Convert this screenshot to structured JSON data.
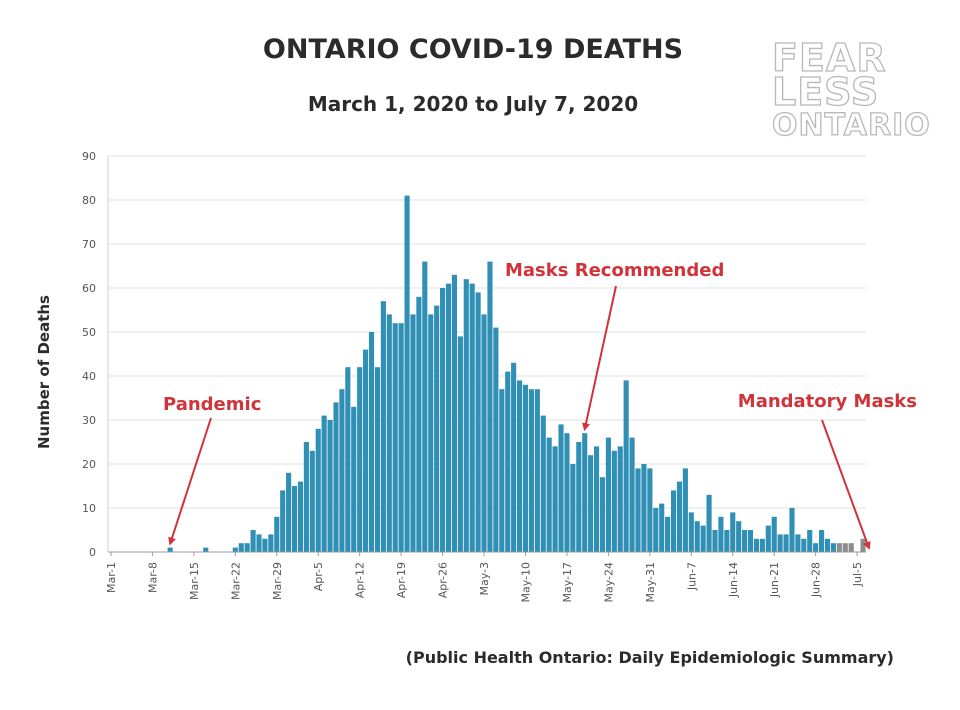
{
  "title": "ONTARIO COVID-19 DEATHS",
  "subtitle": "March 1, 2020 to July 7, 2020",
  "logo": {
    "line1": "FEAR",
    "line2": "LESS",
    "line3": "ONTARIO"
  },
  "source": "(Public Health Ontario: Daily Epidemiologic Summary)",
  "colors": {
    "bar": "#2f8fb4",
    "bar_recent": "#8c8c8c",
    "annotation": "#d0343a",
    "grid": "#e2e2e2"
  },
  "chart_data": {
    "type": "bar",
    "title": "ONTARIO COVID-19 DEATHS",
    "subtitle": "March 1, 2020 to July 7, 2020",
    "xlabel": "",
    "ylabel": "Number of Deaths",
    "ylim": [
      0,
      90
    ],
    "yticks": [
      0,
      10,
      20,
      30,
      40,
      50,
      60,
      70,
      80,
      90
    ],
    "grid": true,
    "legend": "none",
    "x_tick_labels": [
      "Mar-1",
      "Mar-8",
      "Mar-15",
      "Mar-22",
      "Mar-29",
      "Apr-5",
      "Apr-12",
      "Apr-19",
      "Apr-26",
      "May-3",
      "May-10",
      "May-17",
      "May-24",
      "May-31",
      "Jun-7",
      "Jun-14",
      "Jun-21",
      "Jun-28",
      "Jul-5"
    ],
    "start_label": "Mar-1",
    "values": [
      0,
      0,
      0,
      0,
      0,
      0,
      0,
      0,
      0,
      0,
      1,
      0,
      0,
      0,
      0,
      0,
      1,
      0,
      0,
      0,
      0,
      1,
      2,
      2,
      5,
      4,
      3,
      4,
      8,
      14,
      18,
      15,
      16,
      25,
      23,
      28,
      31,
      30,
      34,
      37,
      42,
      33,
      42,
      46,
      50,
      42,
      57,
      54,
      52,
      52,
      81,
      54,
      58,
      66,
      54,
      56,
      60,
      61,
      63,
      49,
      62,
      61,
      59,
      54,
      66,
      51,
      37,
      41,
      43,
      39,
      38,
      37,
      37,
      31,
      26,
      24,
      29,
      27,
      20,
      25,
      27,
      22,
      24,
      17,
      26,
      23,
      24,
      39,
      26,
      19,
      20,
      19,
      10,
      11,
      8,
      14,
      16,
      19,
      9,
      7,
      6,
      13,
      5,
      8,
      5,
      9,
      7,
      5,
      5,
      3,
      3,
      6,
      8,
      4,
      4,
      10,
      4,
      3,
      5,
      2,
      5,
      3,
      2,
      2,
      2,
      2,
      0,
      3
    ],
    "recent_provisional_from_index": 123,
    "annotations": [
      {
        "label": "Pandemic",
        "date": "Mar-11"
      },
      {
        "label": "Masks Recommended",
        "date": "May-20"
      },
      {
        "label": "Mandatory Masks",
        "date": "Jul-7"
      }
    ]
  }
}
